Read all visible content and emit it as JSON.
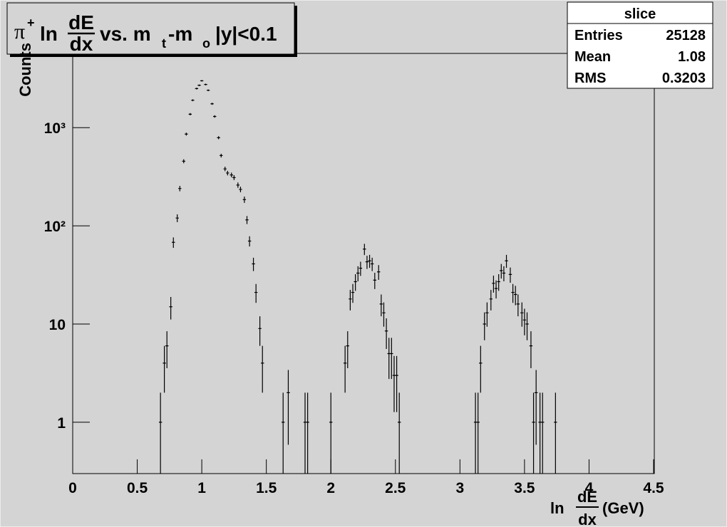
{
  "chart_data": {
    "type": "errorbar",
    "title": {
      "symbol": "π",
      "charge": "+",
      "ln": "ln",
      "frac_num": "dE",
      "frac_den": "dx",
      "vs": "vs. m",
      "sub1": "t",
      "minus": "-m",
      "sub2": "o",
      "cut": "|y|<0.1"
    },
    "x_label": {
      "ln": "ln",
      "frac_num": "dE",
      "frac_den": "dx",
      "unit": "(GeV)"
    },
    "y_label": "Counts",
    "stats": {
      "title": "slice",
      "rows": [
        {
          "label": "Entries",
          "value": 25128
        },
        {
          "label": "Mean",
          "value": 1.08
        },
        {
          "label": "RMS",
          "value": 0.3203
        }
      ]
    },
    "log_y": true,
    "color": "#000000",
    "xlim": [
      0,
      4.5
    ],
    "ylim": [
      0.3,
      5700
    ],
    "xticks": [
      0,
      0.5,
      1,
      1.5,
      2,
      2.5,
      3,
      3.5,
      4,
      4.5
    ],
    "yticks": [
      1,
      10,
      {
        "value": 100,
        "label": "10²"
      },
      {
        "value": 1000,
        "label": "10³"
      }
    ],
    "x": [
      0.68,
      0.71,
      0.73,
      0.76,
      0.78,
      0.81,
      0.83,
      0.86,
      0.88,
      0.91,
      0.93,
      0.96,
      0.98,
      1.0,
      1.03,
      1.05,
      1.08,
      1.1,
      1.13,
      1.15,
      1.18,
      1.2,
      1.23,
      1.25,
      1.28,
      1.3,
      1.33,
      1.35,
      1.37,
      1.4,
      1.42,
      1.45,
      1.47,
      1.63,
      1.67,
      1.8,
      1.82,
      2.0,
      2.11,
      2.13,
      2.15,
      2.17,
      2.19,
      2.21,
      2.23,
      2.26,
      2.28,
      2.3,
      2.32,
      2.34,
      2.37,
      2.39,
      2.41,
      2.43,
      2.45,
      2.47,
      2.49,
      2.51,
      2.53,
      3.12,
      3.14,
      3.16,
      3.19,
      3.21,
      3.24,
      3.26,
      3.28,
      3.3,
      3.32,
      3.34,
      3.36,
      3.39,
      3.41,
      3.43,
      3.45,
      3.48,
      3.5,
      3.52,
      3.55,
      3.57,
      3.59,
      3.62,
      3.64,
      3.74
    ],
    "values": [
      1,
      4,
      6,
      15,
      68,
      120,
      240,
      455,
      860,
      1370,
      1900,
      2500,
      2700,
      3000,
      2750,
      2400,
      1750,
      1300,
      790,
      520,
      380,
      345,
      330,
      310,
      260,
      235,
      185,
      115,
      70,
      41,
      21,
      9,
      4,
      1,
      2,
      1,
      1,
      1,
      4,
      6,
      18,
      21,
      27,
      33,
      37,
      58,
      43,
      44,
      41,
      28,
      34,
      16,
      13,
      8.5,
      5,
      5,
      3,
      3,
      1,
      1,
      1,
      4,
      10,
      13,
      18,
      26,
      23,
      27,
      35,
      33,
      44,
      32,
      21,
      20,
      16,
      13,
      11,
      10,
      6,
      1,
      2,
      1,
      1,
      1
    ],
    "errors": [
      1,
      2,
      2.45,
      3.87,
      8.25,
      10.95,
      15.49,
      21.33,
      29.33,
      37.01,
      43.59,
      50,
      51.96,
      54.77,
      52.44,
      48.99,
      41.83,
      36.06,
      28.11,
      22.8,
      19.49,
      18.57,
      18.17,
      17.61,
      16.12,
      15.33,
      13.6,
      10.72,
      8.37,
      6.4,
      4.58,
      3,
      2,
      1,
      1.41,
      1,
      1,
      1,
      2,
      2.45,
      4.24,
      4.58,
      5.2,
      5.74,
      6.08,
      7.62,
      6.56,
      6.63,
      6.4,
      5.29,
      5.83,
      4,
      3.61,
      2.92,
      2.24,
      2.24,
      1.73,
      1.73,
      1,
      1,
      1,
      2,
      3.16,
      3.61,
      4.24,
      5.1,
      4.8,
      5.2,
      5.92,
      5.74,
      6.63,
      5.66,
      4.58,
      4.47,
      4,
      3.61,
      3.32,
      3.16,
      2.45,
      1,
      1.41,
      1,
      1,
      1
    ]
  }
}
